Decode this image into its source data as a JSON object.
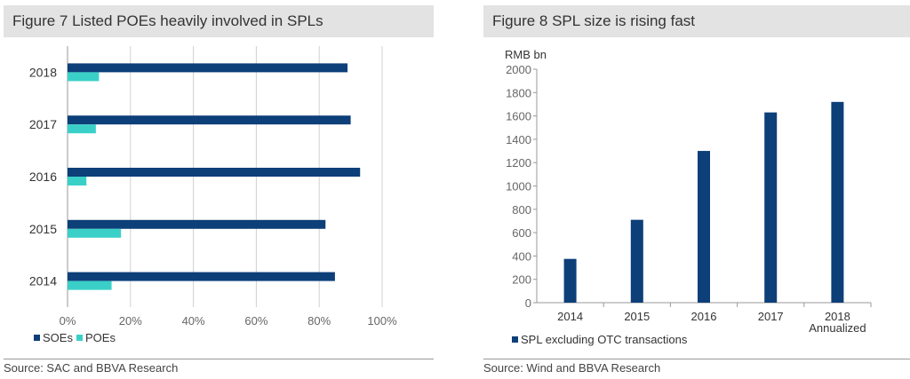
{
  "left": {
    "title": "Figure 7 Listed POEs heavily involved in SPLs",
    "source": "Source: SAC and BBVA Research"
  },
  "right": {
    "title": "Figure 8 SPL size is rising fast",
    "source": "Source: Wind and BBVA Research"
  },
  "colors": {
    "navy": "#0d3f79",
    "teal": "#3ad0c8",
    "grid": "#d0d0d0",
    "axis": "#999999"
  },
  "chart_data": [
    {
      "type": "bar",
      "orientation": "horizontal",
      "categories": [
        "2018",
        "2017",
        "2016",
        "2015",
        "2014"
      ],
      "series": [
        {
          "name": "SOEs",
          "values": [
            89,
            90,
            93,
            82,
            85
          ],
          "color": "#0d3f79"
        },
        {
          "name": "POEs",
          "values": [
            10,
            9,
            6,
            17,
            14
          ],
          "color": "#3ad0c8"
        }
      ],
      "xlim": [
        0,
        100
      ],
      "xticks": [
        "0%",
        "20%",
        "40%",
        "60%",
        "80%",
        "100%"
      ],
      "grid": true,
      "legend": "bottom-left"
    },
    {
      "type": "bar",
      "categories": [
        "2014",
        "2015",
        "2016",
        "2017",
        "2018\nAnnualized"
      ],
      "series": [
        {
          "name": "SPL excluding OTC transactions",
          "values": [
            375,
            710,
            1300,
            1630,
            1720
          ],
          "color": "#0d3f79"
        }
      ],
      "ylabel": "RMB bn",
      "ylim": [
        0,
        2000
      ],
      "yticks": [
        "0",
        "200",
        "400",
        "600",
        "800",
        "1000",
        "1200",
        "1400",
        "1600",
        "1800",
        "2000"
      ],
      "grid": false,
      "legend": "bottom-left"
    }
  ]
}
